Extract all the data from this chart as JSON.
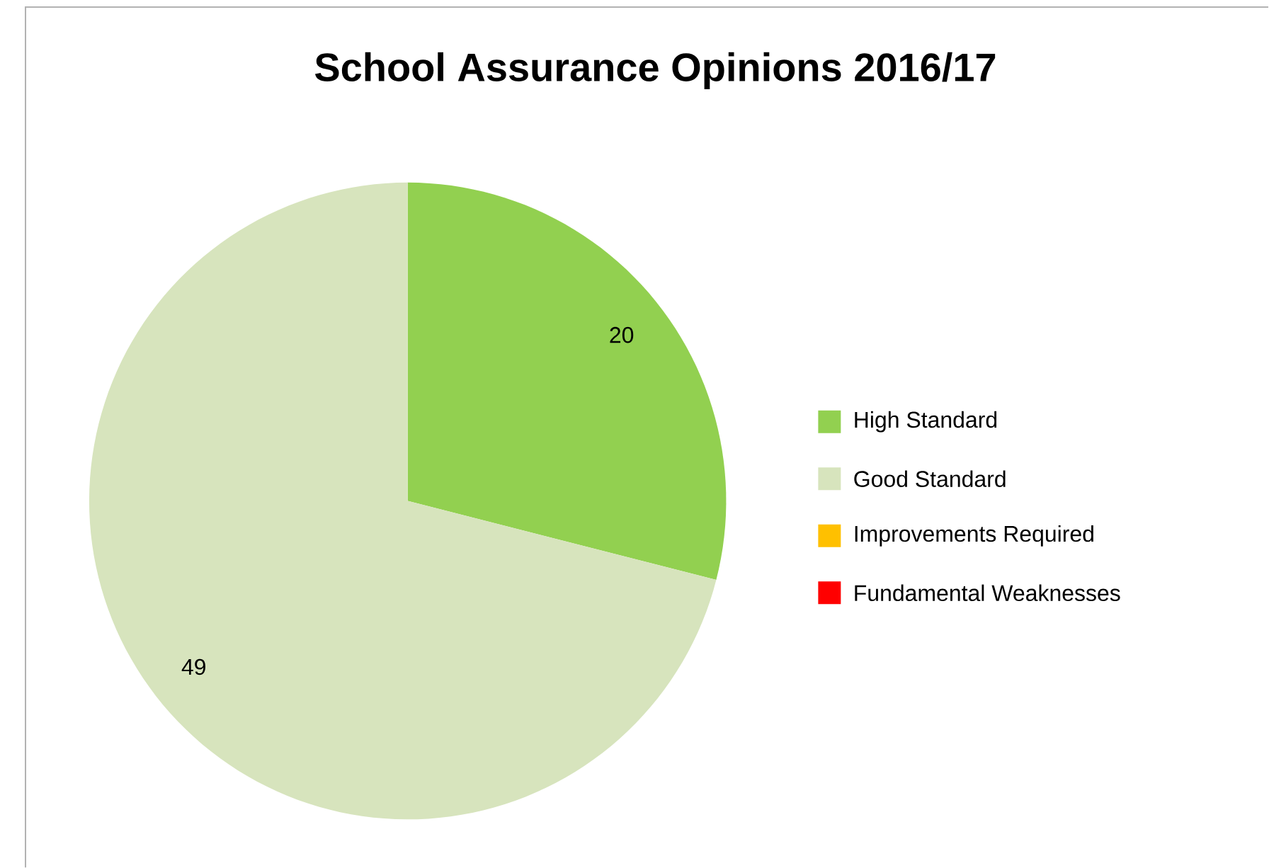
{
  "chart_data": {
    "type": "pie",
    "title": "School Assurance Opinions 2016/17",
    "categories": [
      "High Standard",
      "Good Standard",
      "Improvements Required",
      "Fundamental Weaknesses"
    ],
    "values": [
      20,
      49,
      0,
      0
    ],
    "colors": [
      "#92d050",
      "#d7e4bd",
      "#ffc000",
      "#ff0000"
    ],
    "value_labels": [
      "20",
      "49",
      null,
      null
    ],
    "legend": "right"
  }
}
